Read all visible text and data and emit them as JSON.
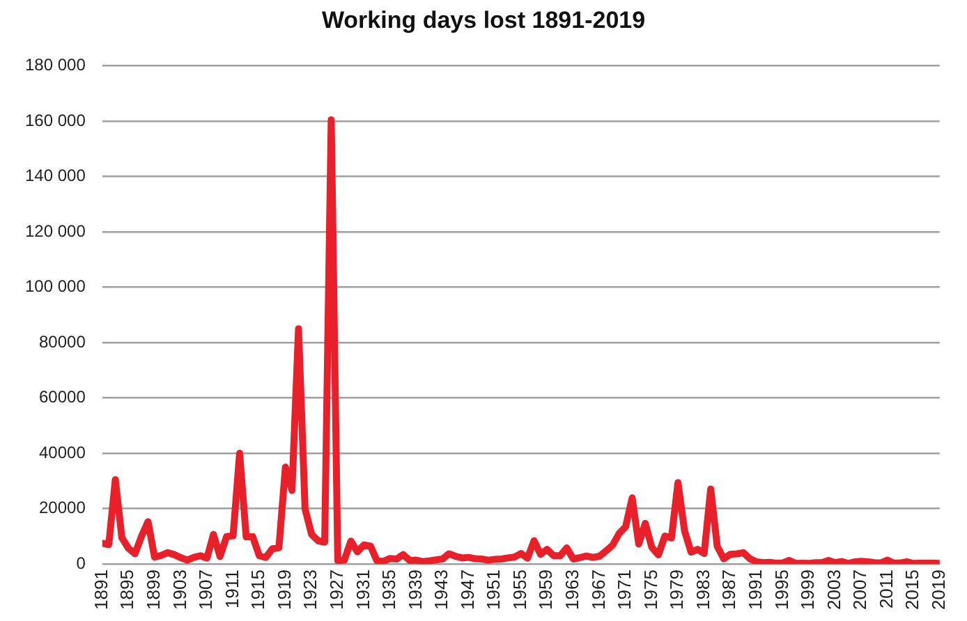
{
  "chart_data": {
    "type": "line",
    "title": "Working days lost 1891-2019",
    "x": [
      1891,
      1892,
      1893,
      1894,
      1895,
      1896,
      1897,
      1898,
      1899,
      1900,
      1901,
      1902,
      1903,
      1904,
      1905,
      1906,
      1907,
      1908,
      1909,
      1910,
      1911,
      1912,
      1913,
      1914,
      1915,
      1916,
      1917,
      1918,
      1919,
      1920,
      1921,
      1922,
      1923,
      1924,
      1925,
      1926,
      1927,
      1928,
      1929,
      1930,
      1931,
      1932,
      1933,
      1934,
      1935,
      1936,
      1937,
      1938,
      1939,
      1940,
      1941,
      1942,
      1943,
      1944,
      1945,
      1946,
      1947,
      1948,
      1949,
      1950,
      1951,
      1952,
      1953,
      1954,
      1955,
      1956,
      1957,
      1958,
      1959,
      1960,
      1961,
      1962,
      1963,
      1964,
      1965,
      1966,
      1967,
      1968,
      1969,
      1970,
      1971,
      1972,
      1973,
      1974,
      1975,
      1976,
      1977,
      1978,
      1979,
      1980,
      1981,
      1982,
      1983,
      1984,
      1985,
      1986,
      1987,
      1988,
      1989,
      1990,
      1991,
      1992,
      1993,
      1994,
      1995,
      1996,
      1997,
      1998,
      1999,
      2000,
      2001,
      2002,
      2003,
      2004,
      2005,
      2006,
      2007,
      2008,
      2009,
      2010,
      2011,
      2012,
      2013,
      2014,
      2015,
      2016,
      2017,
      2018,
      2019
    ],
    "series": [
      {
        "color": "#e8202a",
        "values": [
          7500,
          7000,
          30500,
          9500,
          5700,
          3700,
          10000,
          15300,
          2500,
          3100,
          4100,
          3400,
          2300,
          1400,
          2400,
          3000,
          2100,
          10700,
          2700,
          9900,
          10200,
          40000,
          9800,
          9900,
          3000,
          2400,
          5500,
          5900,
          35000,
          26600,
          85000,
          19900,
          10700,
          8400,
          7900,
          160500,
          1200,
          1400,
          8300,
          4400,
          6900,
          6500,
          1100,
          1000,
          2000,
          1800,
          3400,
          1300,
          1400,
          900,
          1100,
          1500,
          1800,
          3700,
          2800,
          2200,
          2400,
          1900,
          1800,
          1400,
          1700,
          1800,
          2200,
          2500,
          3800,
          2100,
          8400,
          3500,
          5300,
          3000,
          3000,
          5800,
          1800,
          2300,
          2900,
          2400,
          2800,
          4700,
          6800,
          11000,
          13500,
          23900,
          7200,
          14700,
          6000,
          3300,
          10100,
          9400,
          29400,
          12000,
          4300,
          5300,
          3800,
          27100,
          6400,
          1900,
          3500,
          3700,
          4100,
          1900,
          800,
          500,
          600,
          300,
          400,
          1300,
          200,
          300,
          200,
          500,
          500,
          1300,
          500,
          900,
          200,
          800,
          1000,
          800,
          500,
          400,
          1400,
          300,
          400,
          800,
          200,
          300,
          300,
          300,
          200
        ]
      }
    ],
    "xlim": [
      1891,
      2019
    ],
    "xticks": [
      1891,
      1895,
      1899,
      1903,
      1907,
      1911,
      1915,
      1919,
      1923,
      1927,
      1931,
      1935,
      1939,
      1943,
      1947,
      1951,
      1955,
      1959,
      1963,
      1967,
      1971,
      1975,
      1979,
      1983,
      1987,
      1991,
      1995,
      1999,
      2003,
      2007,
      2011,
      2015,
      2019
    ],
    "ylim": [
      0,
      180000
    ],
    "yticks": [
      0,
      20000,
      40000,
      60000,
      80000,
      {
        "value": 100000,
        "label": "100 000"
      },
      {
        "value": 120000,
        "label": "120 000"
      },
      {
        "value": 140000,
        "label": "140 000"
      },
      {
        "value": 160000,
        "label": "160 000"
      },
      {
        "value": 180000,
        "label": "180 000"
      }
    ],
    "grid": "y",
    "legend": false,
    "marker": "none",
    "line_style": "solid"
  }
}
